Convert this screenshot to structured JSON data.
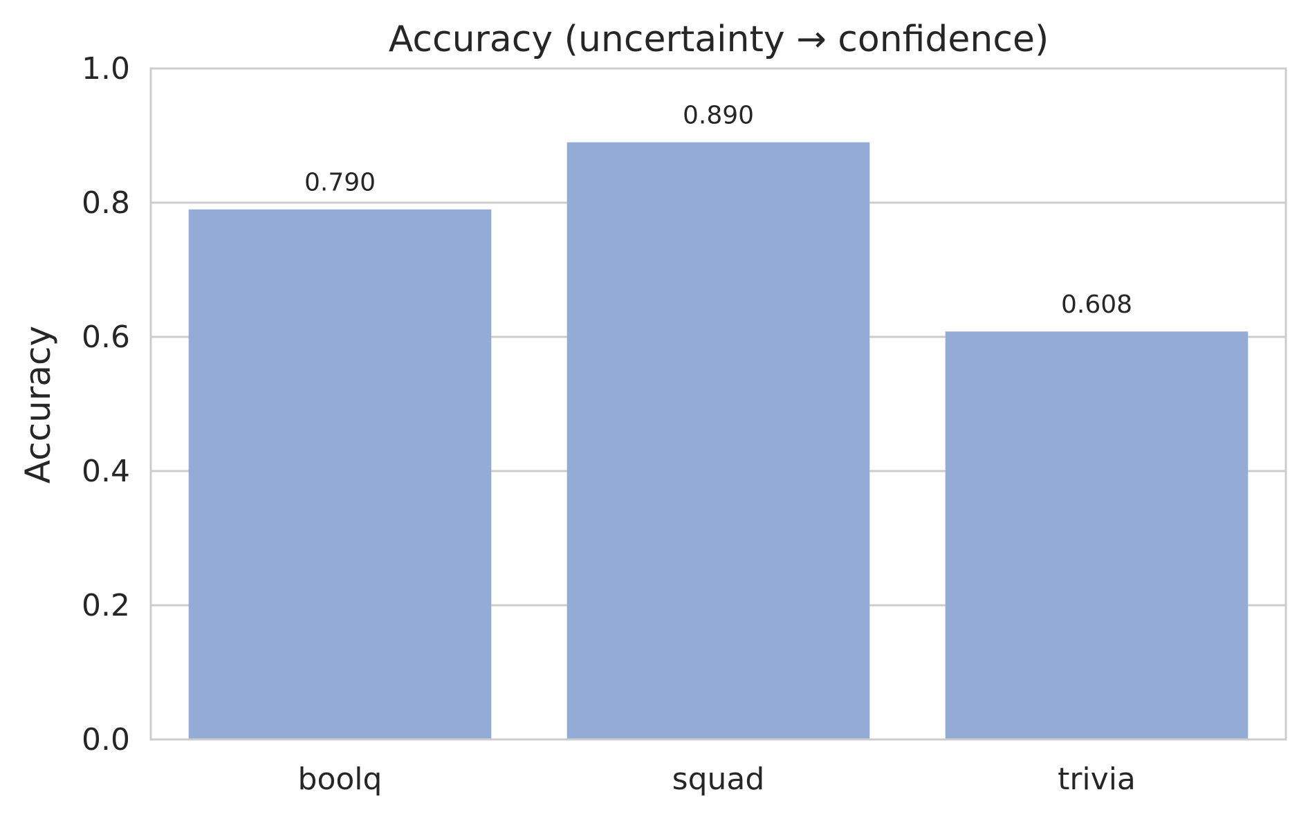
{
  "chart_data": {
    "type": "bar",
    "title": "Accuracy (uncertainty → confidence)",
    "xlabel": "",
    "ylabel": "Accuracy",
    "categories": [
      "boolq",
      "squad",
      "trivia"
    ],
    "values": [
      0.79,
      0.89,
      0.608
    ],
    "data_labels": [
      "0.790",
      "0.890",
      "0.608"
    ],
    "ylim": [
      0,
      1
    ],
    "yticks": [
      0.0,
      0.2,
      0.4,
      0.6,
      0.8,
      1.0
    ],
    "ytick_labels": [
      "0.0",
      "0.2",
      "0.4",
      "0.6",
      "0.8",
      "1.0"
    ],
    "grid": "horizontal",
    "colors": {
      "bar": "#94acd5",
      "grid": "#cccccc",
      "spine": "#cccccc",
      "text": "#262626"
    }
  }
}
